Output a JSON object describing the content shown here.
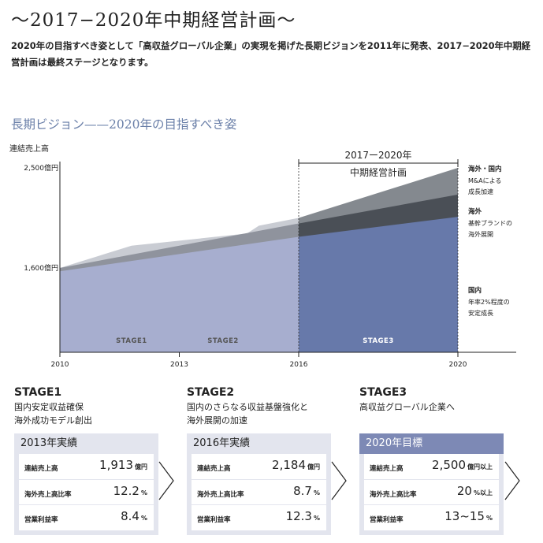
{
  "page": {
    "title": "〜2017−2020年中期経営計画〜",
    "lead": "2020年の目指すべき姿として「高収益グローバル企業」の実現を掲げた長期ビジョンを2011年に発表、2017−2020年中期経営計画は最終ステージとなります。",
    "subtitle": "長期ビジョン——2020年の目指すべき姿"
  },
  "chart_data": {
    "type": "area",
    "ylabel": "連結売上高",
    "y_ticks": [
      {
        "value": 1600,
        "label": "1,600億円"
      },
      {
        "value": 2500,
        "label": "2,500億円"
      }
    ],
    "x_ticks": [
      2010,
      2013,
      2016,
      2020
    ],
    "x_range": [
      2010,
      2022
    ],
    "plan_label_1": "2017ー2020年",
    "plan_label_2": "中期経営計画",
    "plan_range": [
      2016,
      2020
    ],
    "stages": [
      {
        "label": "STAGE1",
        "x": 2011.8
      },
      {
        "label": "STAGE2",
        "x": 2014.1
      },
      {
        "label": "STAGE3",
        "x": 2018.0
      }
    ],
    "series": [
      {
        "key": "domestic",
        "name": "国内",
        "note1": "年率2%程度の",
        "note2": "安定成長",
        "color_base": "#a7aecf",
        "color_plan": "#6779aa",
        "points": [
          [
            2010,
            1570
          ],
          [
            2016,
            1880
          ],
          [
            2020,
            2060
          ]
        ]
      },
      {
        "key": "brand",
        "name": "海外",
        "note1": "基幹ブランドの",
        "note2": "海外展開",
        "color_base": "#8f939d",
        "color_plan": "#4a4f56",
        "points": [
          [
            2010,
            1600
          ],
          [
            2016,
            2000
          ],
          [
            2020,
            2260
          ]
        ]
      },
      {
        "key": "ma",
        "name": "海外・国内",
        "note1": "M&Aによる",
        "note2": "成長加速",
        "color_base": "#c9ccd3",
        "color_plan": "#84898f",
        "points": [
          [
            2010,
            1600
          ],
          [
            2011.8,
            1800
          ],
          [
            2014.7,
            1910
          ],
          [
            2015.0,
            1980
          ],
          [
            2016,
            2050
          ],
          [
            2020,
            2500
          ]
        ]
      }
    ]
  },
  "stages": [
    {
      "name": "STAGE1",
      "desc1": "国内安定収益確保",
      "desc2": "海外成功モデル創出",
      "card_title": "2013年実績",
      "card_type": "result",
      "rows": [
        {
          "label": "連結売上高",
          "value": "1,913",
          "unit": "億円"
        },
        {
          "label": "海外売上高比率",
          "value": "12.2",
          "unit": "%"
        },
        {
          "label": "営業利益率",
          "value": "8.4",
          "unit": "%"
        }
      ]
    },
    {
      "name": "STAGE2",
      "desc1": "国内のさらなる収益基盤強化と",
      "desc2": "海外展開の加速",
      "card_title": "2016年実績",
      "card_type": "result",
      "rows": [
        {
          "label": "連結売上高",
          "value": "2,184",
          "unit": "億円"
        },
        {
          "label": "海外売上高比率",
          "value": "8.7",
          "unit": "%"
        },
        {
          "label": "営業利益率",
          "value": "12.3",
          "unit": "%"
        }
      ]
    },
    {
      "name": "STAGE3",
      "desc1": "高収益グローバル企業へ",
      "desc2": "",
      "card_title": "2020年目標",
      "card_type": "target",
      "rows": [
        {
          "label": "連結売上高",
          "value": "2,500",
          "unit": "億円以上"
        },
        {
          "label": "海外売上高比率",
          "value": "20",
          "unit": "%以上"
        },
        {
          "label": "営業利益率",
          "value": "13~15",
          "unit": "%"
        }
      ]
    }
  ],
  "colors": {
    "accent": "#6a7fa8",
    "card_bg": "#e3e5ee",
    "target_head": "#7d89b5"
  },
  "icons": {
    "arrow": "chevron-right-icon"
  }
}
